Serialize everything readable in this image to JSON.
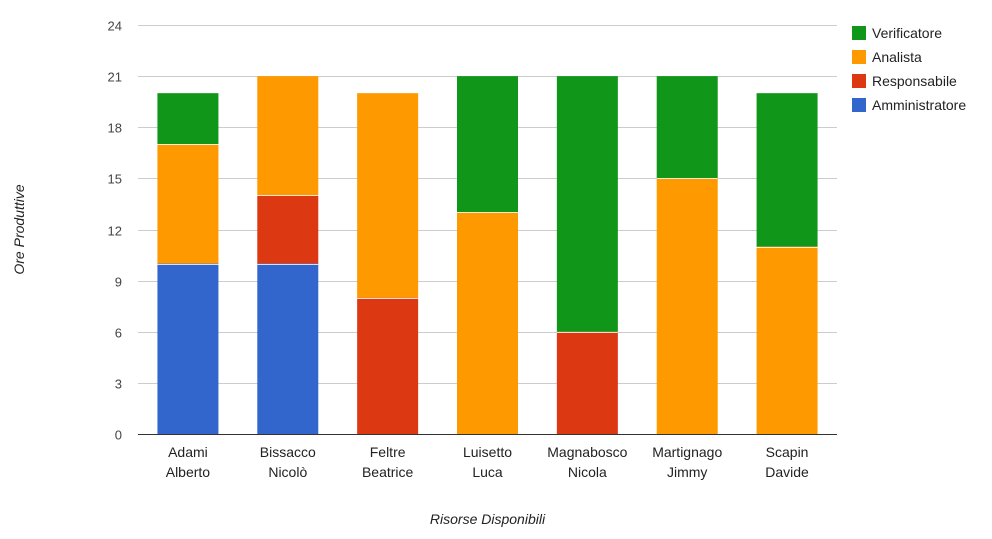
{
  "chart_data": {
    "type": "bar",
    "stacked": true,
    "title": "",
    "xlabel": "Risorse Disponibili",
    "ylabel": "Ore Produttive",
    "ylim": [
      0,
      24
    ],
    "yticks": [
      0,
      3,
      6,
      9,
      12,
      15,
      18,
      21,
      24
    ],
    "grid": true,
    "legend_position": "right",
    "categories": [
      [
        "Adami",
        "Alberto"
      ],
      [
        "Bissacco",
        "Nicolò"
      ],
      [
        "Feltre",
        "Beatrice"
      ],
      [
        "Luisetto",
        "Luca"
      ],
      [
        "Magnabosco",
        "Nicola"
      ],
      [
        "Martignago",
        "Jimmy"
      ],
      [
        "Scapin",
        "Davide"
      ]
    ],
    "series": [
      {
        "name": "Amministratore",
        "color": "#3366cc",
        "values": [
          10,
          10,
          0,
          0,
          0,
          0,
          0
        ]
      },
      {
        "name": "Responsabile",
        "color": "#dc3912",
        "values": [
          0,
          4,
          8,
          0,
          6,
          0,
          0
        ]
      },
      {
        "name": "Analista",
        "color": "#ff9900",
        "values": [
          7,
          7,
          12,
          13,
          0,
          15,
          11
        ]
      },
      {
        "name": "Verificatore",
        "color": "#109618",
        "values": [
          3,
          0,
          0,
          8,
          15,
          6,
          9
        ]
      }
    ],
    "legend_order": [
      "Verificatore",
      "Analista",
      "Responsabile",
      "Amministratore"
    ]
  }
}
